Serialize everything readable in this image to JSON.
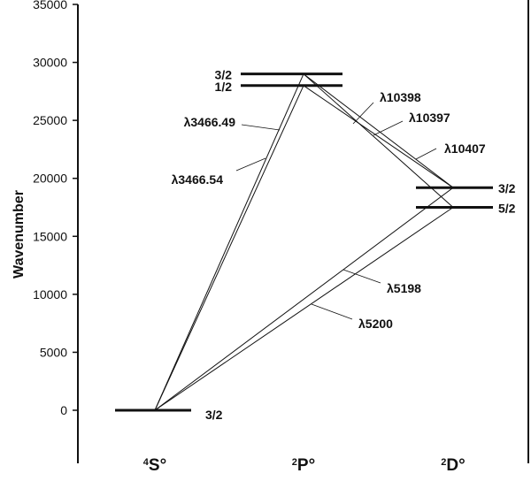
{
  "chart_data": {
    "type": "energy-level diagram",
    "ylabel": "Wavenumber",
    "ylim": [
      0,
      35000
    ],
    "yticks": [
      "0",
      "5000",
      "10000",
      "15000",
      "20000",
      "25000",
      "30000",
      "35000"
    ],
    "terms": [
      {
        "id": "S",
        "sup": "4",
        "letter": "S",
        "parity": "°",
        "levels": [
          {
            "J": "3/2",
            "energy": 0
          }
        ]
      },
      {
        "id": "P",
        "sup": "2",
        "letter": "P",
        "parity": "°",
        "levels": [
          {
            "J": "3/2",
            "energy": 29000
          },
          {
            "J": "1/2",
            "energy": 28000
          }
        ]
      },
      {
        "id": "D",
        "sup": "2",
        "letter": "D",
        "parity": "°",
        "levels": [
          {
            "J": "3/2",
            "energy": 19200
          },
          {
            "J": "5/2",
            "energy": 17500
          }
        ]
      }
    ],
    "transitions": [
      {
        "label": "λ3466.49",
        "from": [
          "S",
          0
        ],
        "to": [
          "P",
          0
        ]
      },
      {
        "label": "λ3466.54",
        "from": [
          "S",
          0
        ],
        "to": [
          "P",
          1
        ]
      },
      {
        "label": "λ10398",
        "from": [
          "P",
          1
        ],
        "to": [
          "D",
          0
        ]
      },
      {
        "label": "λ10397",
        "from": [
          "P",
          0
        ],
        "to": [
          "D",
          1
        ]
      },
      {
        "label": "λ10407",
        "from": [
          "P",
          0
        ],
        "to": [
          "D",
          0
        ]
      },
      {
        "label": "λ5198",
        "from": [
          "S",
          0
        ],
        "to": [
          "D",
          0
        ]
      },
      {
        "label": "λ5200",
        "from": [
          "S",
          0
        ],
        "to": [
          "D",
          1
        ]
      }
    ]
  }
}
